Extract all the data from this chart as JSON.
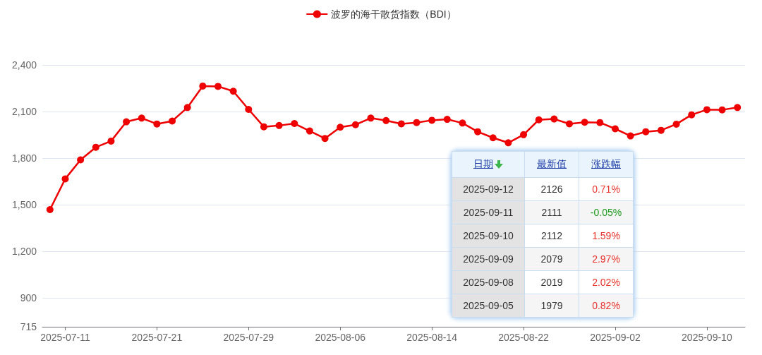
{
  "chart_data": {
    "type": "line",
    "categories": [
      null,
      "2025-07-11",
      null,
      null,
      null,
      null,
      null,
      "2025-07-21",
      null,
      null,
      null,
      null,
      null,
      "2025-07-29",
      null,
      null,
      null,
      null,
      null,
      "2025-08-06",
      null,
      null,
      null,
      null,
      null,
      "2025-08-14",
      null,
      null,
      null,
      null,
      null,
      "2025-08-22",
      null,
      null,
      null,
      null,
      null,
      "2025-09-02",
      null,
      null,
      null,
      null,
      null,
      "2025-09-10",
      null,
      null
    ],
    "series": [
      {
        "name": "波罗的海干散货指数（BDI）",
        "color": "#ee0000",
        "values": [
          1469,
          1667,
          1789,
          1870,
          1910,
          2034,
          2058,
          2020,
          2039,
          2126,
          2264,
          2262,
          2231,
          2114,
          2002,
          2010,
          2023,
          1975,
          1927,
          1999,
          2015,
          2058,
          2042,
          2021,
          2029,
          2044,
          2050,
          2026,
          1970,
          1931,
          1899,
          1951,
          2047,
          2052,
          2021,
          2031,
          2029,
          1989,
          1943,
          1970,
          1979,
          2019,
          2079,
          2112,
          2111,
          2126
        ]
      }
    ],
    "ylim": [
      715,
      2400
    ],
    "yticks": [
      715,
      900,
      {
        "value": 1200,
        "label": "1,200"
      },
      {
        "value": 1500,
        "label": "1,500"
      },
      {
        "value": 1800,
        "label": "1,800"
      },
      {
        "value": 2100,
        "label": "2,100"
      },
      {
        "value": 2400,
        "label": "2,400"
      }
    ],
    "grid": "y",
    "legend": "top",
    "marker": "circle",
    "line_style": "solid",
    "annotations": [
      "日期",
      "最新值",
      "涨跌幅",
      "2025-09-12",
      "2126",
      "0.71%",
      "2025-09-11",
      "2111",
      "-0.05%",
      "2025-09-10",
      "2112",
      "1.59%",
      "2025-09-09",
      "2079",
      "2.97%",
      "2025-09-08",
      "2019",
      "2.02%",
      "2025-09-05",
      "1979",
      "0.82%"
    ]
  }
}
